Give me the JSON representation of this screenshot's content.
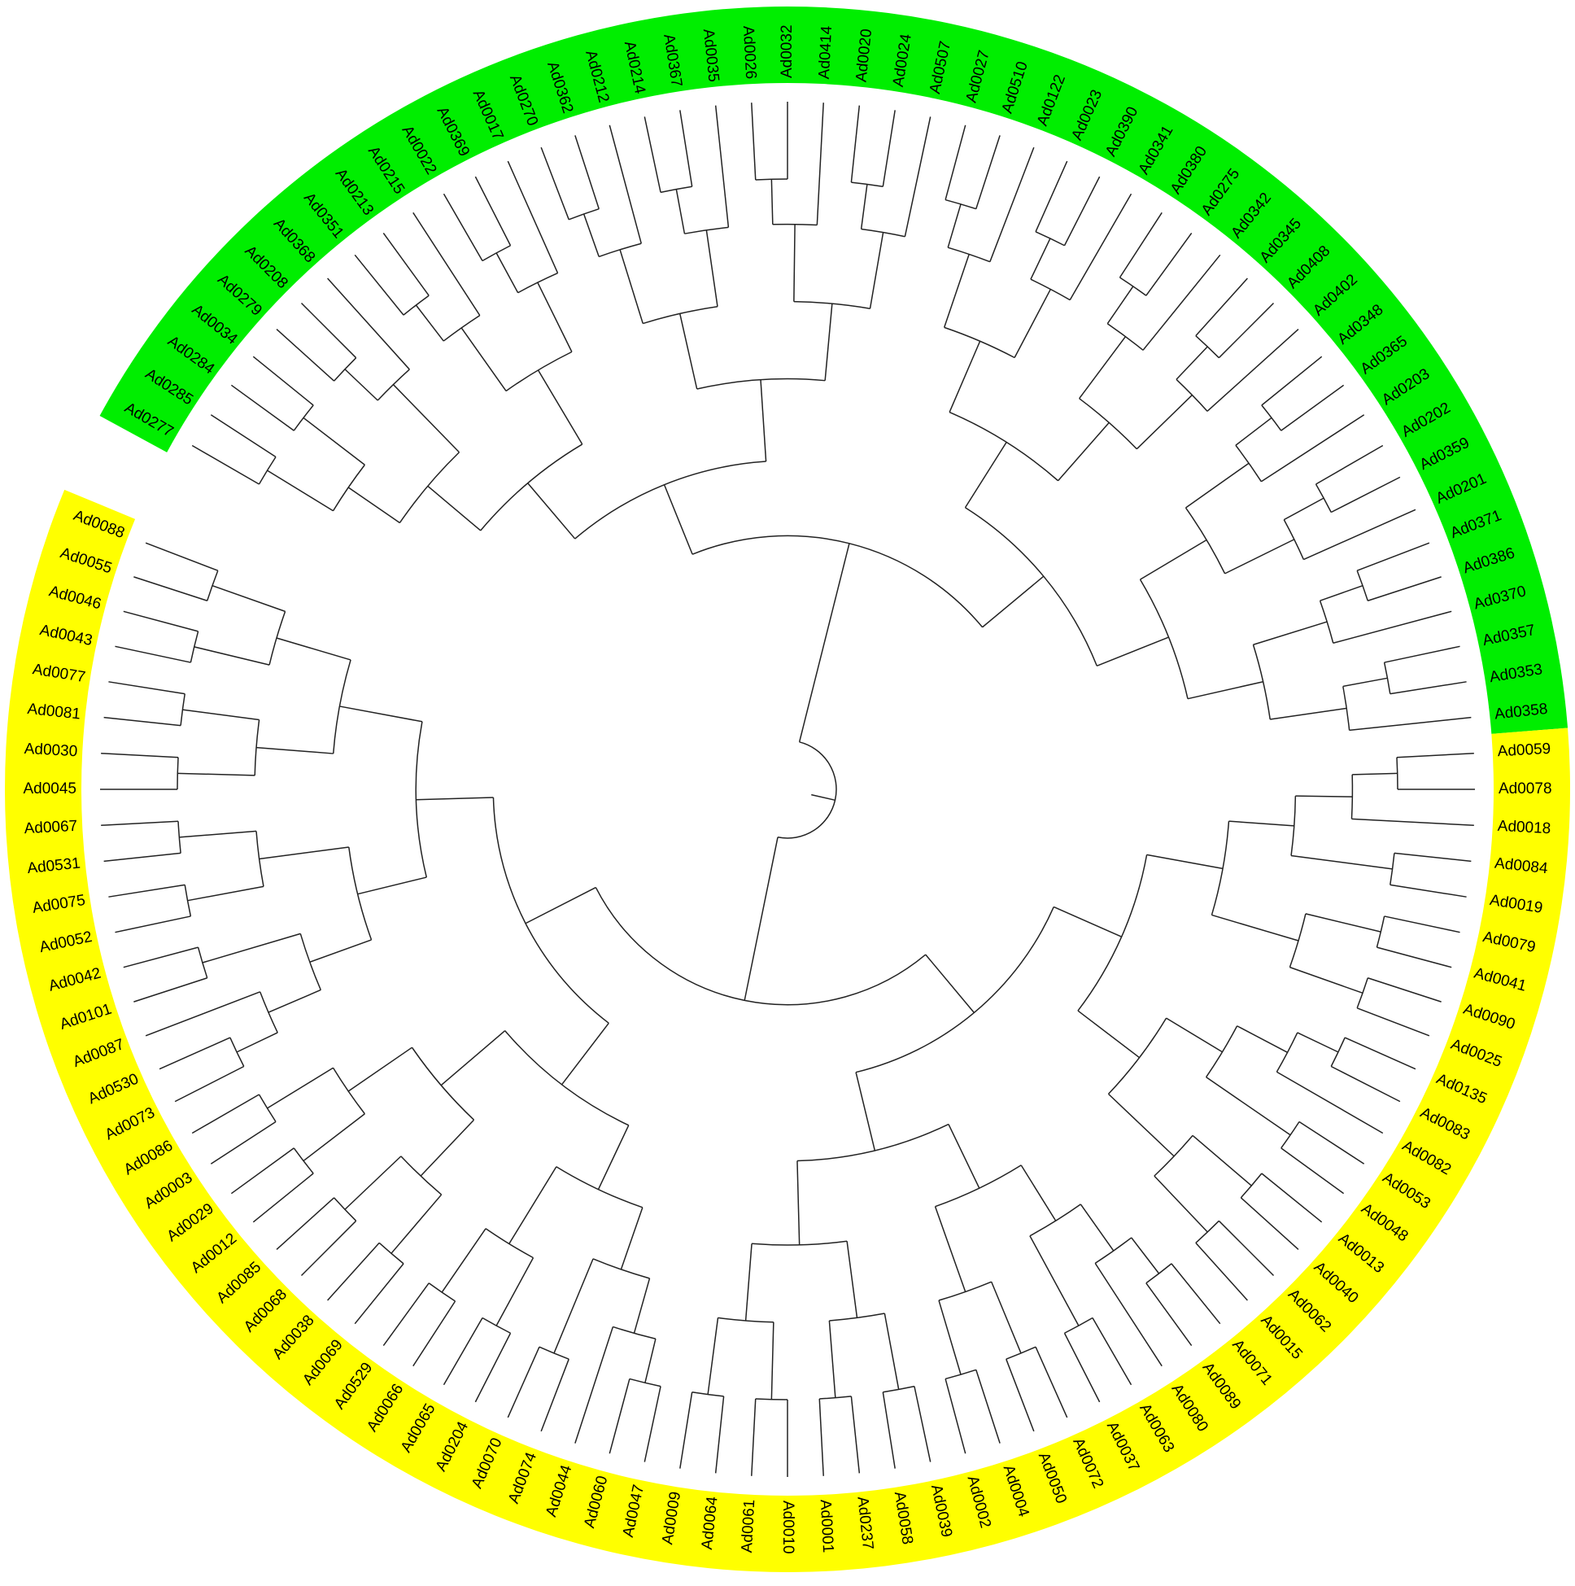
{
  "tree": {
    "groups": [
      {
        "color": "#00ee00",
        "leaves": [
          "Ad0277",
          "Ad0285",
          "Ad0284",
          "Ad0034",
          "Ad0279",
          "Ad0208",
          "Ad0368",
          "Ad0351",
          "Ad0213",
          "Ad0215",
          "Ad0022",
          "Ad0369",
          "Ad0017",
          "Ad0270",
          "Ad0362",
          "Ad0212",
          "Ad0214",
          "Ad0367",
          "Ad0035",
          "Ad0026",
          "Ad0032",
          "Ad0414",
          "Ad0020",
          "Ad0024",
          "Ad0507",
          "Ad0027",
          "Ad0510",
          "Ad0122",
          "Ad0023",
          "Ad0390",
          "Ad0341",
          "Ad0380",
          "Ad0275",
          "Ad0342",
          "Ad0345",
          "Ad0408",
          "Ad0402",
          "Ad0348",
          "Ad0365",
          "Ad0203",
          "Ad0202",
          "Ad0359",
          "Ad0201",
          "Ad0371",
          "Ad0386",
          "Ad0370",
          "Ad0357",
          "Ad0353",
          "Ad0358"
        ]
      },
      {
        "color": "#ffff00",
        "leaves": [
          "Ad0059",
          "Ad0078",
          "Ad0018",
          "Ad0084",
          "Ad0019",
          "Ad0079",
          "Ad0041",
          "Ad0090",
          "Ad0025",
          "Ad0135",
          "Ad0083",
          "Ad0082",
          "Ad0053",
          "Ad0048",
          "Ad0013",
          "Ad0040",
          "Ad0062",
          "Ad0015",
          "Ad0071",
          "Ad0089",
          "Ad0080",
          "Ad0063",
          "Ad0037",
          "Ad0072",
          "Ad0050",
          "Ad0004",
          "Ad0002",
          "Ad0039",
          "Ad0058",
          "Ad0237",
          "Ad0001",
          "Ad0010",
          "Ad0061",
          "Ad0064",
          "Ad0009",
          "Ad0047",
          "Ad0060",
          "Ad0044",
          "Ad0074",
          "Ad0070",
          "Ad0204",
          "Ad0065",
          "Ad0066",
          "Ad0529",
          "Ad0069",
          "Ad0038",
          "Ad0068",
          "Ad0085",
          "Ad0012",
          "Ad0029",
          "Ad0003",
          "Ad0086",
          "Ad0073",
          "Ad0530",
          "Ad0087",
          "Ad0101",
          "Ad0042",
          "Ad0052",
          "Ad0075",
          "Ad0531",
          "Ad0067",
          "Ad0045",
          "Ad0030",
          "Ad0081",
          "Ad0077",
          "Ad0043",
          "Ad0046",
          "Ad0055",
          "Ad0088"
        ]
      }
    ]
  }
}
